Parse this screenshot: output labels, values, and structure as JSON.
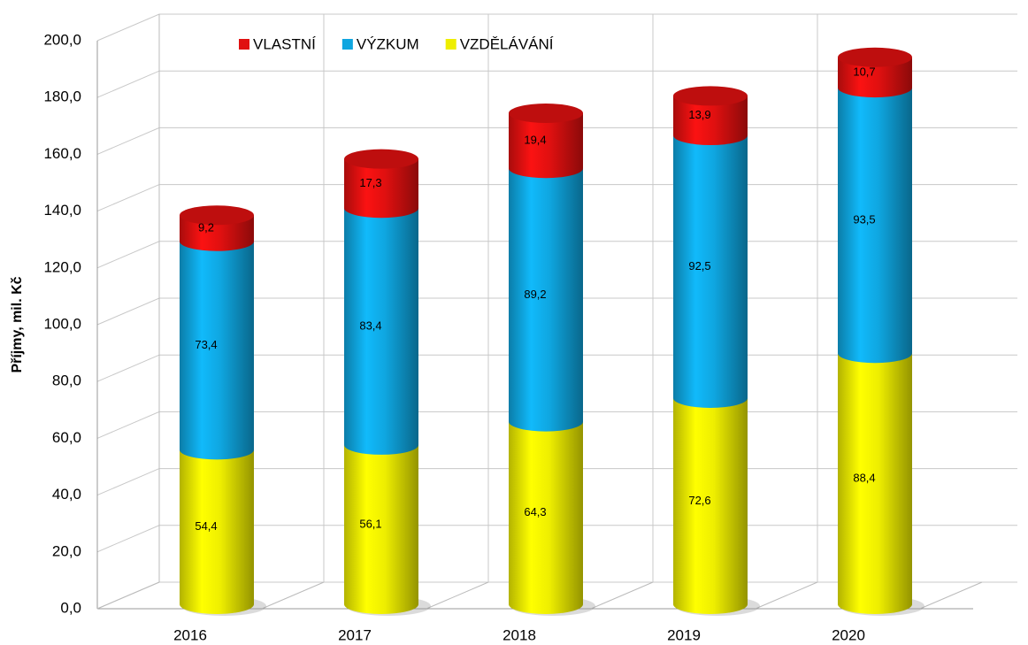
{
  "chart_data": {
    "type": "bar3d_stacked",
    "y_label": "Příjmy, mil. Kč",
    "categories": [
      "2016",
      "2017",
      "2018",
      "2019",
      "2020"
    ],
    "series": [
      {
        "name": "VZDĚLÁVÁNÍ",
        "color": "#eeee00",
        "values": [
          54.4,
          56.1,
          64.3,
          72.6,
          88.4
        ],
        "value_labels": [
          "54,4",
          "56,1",
          "64,3",
          "72,6",
          "88,4"
        ]
      },
      {
        "name": "VÝZKUM",
        "color": "#0fa6e0",
        "values": [
          73.4,
          83.4,
          89.2,
          92.5,
          93.5
        ],
        "value_labels": [
          "73,4",
          "83,4",
          "89,2",
          "92,5",
          "93,5"
        ]
      },
      {
        "name": "VLASTNÍ",
        "color": "#e01010",
        "values": [
          9.2,
          17.3,
          19.4,
          13.9,
          10.7
        ],
        "value_labels": [
          "9,2",
          "17,3",
          "19,4",
          "13,9",
          "10,7"
        ]
      }
    ],
    "ylim": [
      0,
      200
    ],
    "yticks": [
      {
        "value": 0,
        "label": "0,0"
      },
      {
        "value": 20,
        "label": "20,0"
      },
      {
        "value": 40,
        "label": "40,0"
      },
      {
        "value": 60,
        "label": "60,0"
      },
      {
        "value": 80,
        "label": "80,0"
      },
      {
        "value": 100,
        "label": "100,0"
      },
      {
        "value": 120,
        "label": "120,0"
      },
      {
        "value": 140,
        "label": "140,0"
      },
      {
        "value": 160,
        "label": "160,0"
      },
      {
        "value": 180,
        "label": "180,0"
      },
      {
        "value": 200,
        "label": "200,0"
      }
    ],
    "grid": true,
    "legend": "top"
  }
}
